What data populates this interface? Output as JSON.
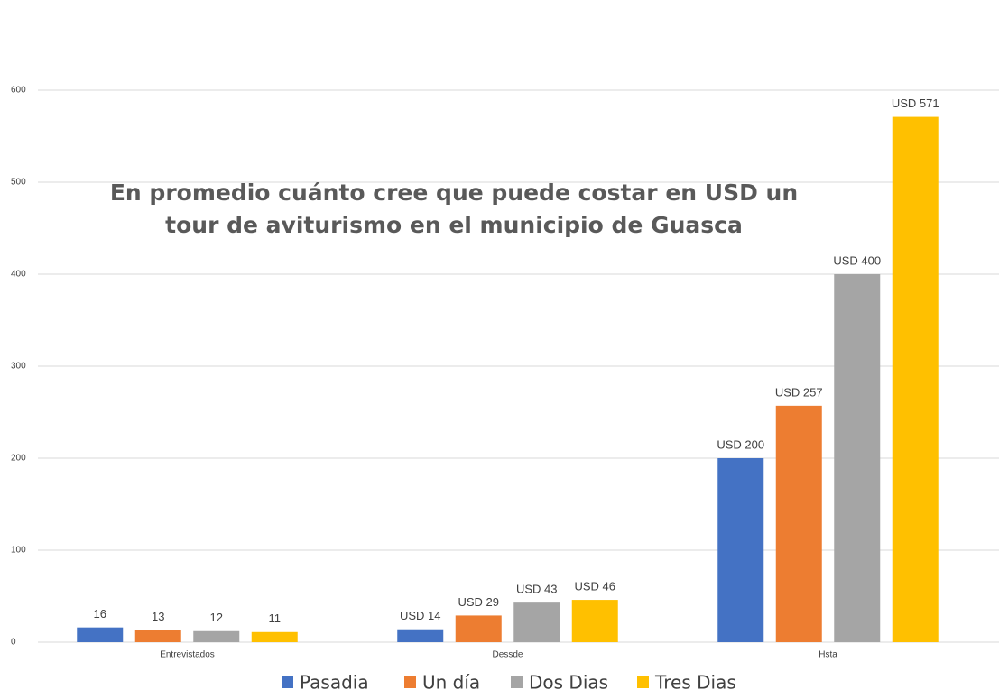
{
  "chart_data": {
    "type": "bar",
    "title": "En promedio cuánto cree que puede costar en USD un tour de aviturismo en el municipio de Guasca",
    "categories": [
      "Entrevistados",
      "Dessde",
      "Hsta"
    ],
    "series": [
      {
        "name": "Pasadia",
        "color": "#4472c4",
        "values": [
          16,
          14,
          200
        ],
        "value_labels": [
          "16",
          "USD 14",
          "USD 200"
        ]
      },
      {
        "name": "Un día",
        "color": "#ed7d31",
        "values": [
          13,
          29,
          257
        ],
        "value_labels": [
          "13",
          "USD 29",
          "USD 257"
        ]
      },
      {
        "name": "Dos Dias",
        "color": "#a5a5a5",
        "values": [
          12,
          43,
          400
        ],
        "value_labels": [
          "12",
          "USD 43",
          "USD 400"
        ]
      },
      {
        "name": "Tres Dias",
        "color": "#ffc000",
        "values": [
          11,
          46,
          571
        ],
        "value_labels": [
          "11",
          "USD 46",
          "USD 571"
        ]
      }
    ],
    "ylim": [
      0,
      600
    ],
    "yticks": [
      0,
      100,
      200,
      300,
      400,
      500,
      600
    ],
    "grid": true,
    "legend": "bottom"
  }
}
